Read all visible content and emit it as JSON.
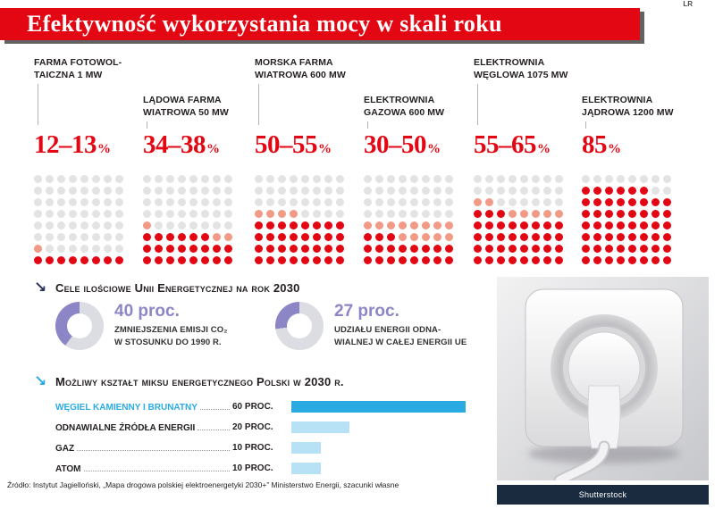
{
  "meta": {
    "credit": "LR",
    "source": "Źródło: Instytut Jagielloński, „Mapa drogowa polskiej elektroenergetyki 2030+” Ministerstwo Energii, szacunki własne",
    "photo_credit": "Shutterstock"
  },
  "header": {
    "title": "Efektywność wykorzystania mocy w skali roku"
  },
  "colors": {
    "red": "#e30613",
    "dot_gray": "#e3e3e3",
    "dot_orange": "#f19a86",
    "purple": "#8d86c6",
    "donut_rest": "#dcdce3",
    "blue": "#29abe2",
    "bar_light": "#b7e2f6",
    "navy": "#27335a"
  },
  "chart_data": [
    {
      "type": "heatmap",
      "subtype": "waffle-dot-matrix",
      "title": "Efektywność wykorzystania mocy w skali roku",
      "unit": "%",
      "grid": {
        "rows": 8,
        "cols": 8
      },
      "series": [
        {
          "label": "FARMA FOTOWOLTAICZNA 1 MW",
          "label_lines": [
            "FARMA FOTOWOL-",
            "TAICZNA 1 MW"
          ],
          "range_label": "12–13",
          "min": 12,
          "max": 13
        },
        {
          "label": "LĄDOWA FARMA WIATROWA 50 MW",
          "label_lines": [
            "LĄDOWA FARMA",
            "WIATROWA 50 MW"
          ],
          "range_label": "34–38",
          "min": 34,
          "max": 38
        },
        {
          "label": "MORSKA FARMA WIATROWA 600 MW",
          "label_lines": [
            "MORSKA FARMA",
            "WIATROWA 600 MW"
          ],
          "range_label": "50–55",
          "min": 50,
          "max": 55
        },
        {
          "label": "ELEKTROWNIA GAZOWA 600 MW",
          "label_lines": [
            "ELEKTROWNIA",
            "GAZOWA 600 MW"
          ],
          "range_label": "30–50",
          "min": 30,
          "max": 50
        },
        {
          "label": "ELEKTROWNIA WĘGLOWA 1075 MW",
          "label_lines": [
            "ELEKTROWNIA",
            "WĘGLOWA 1075 MW"
          ],
          "range_label": "55–65",
          "min": 55,
          "max": 65
        },
        {
          "label": "ELEKTROWNIA JĄDROWA 1200 MW",
          "label_lines": [
            "ELEKTROWNIA",
            "JĄDROWA 1200 MW"
          ],
          "range_label": "85",
          "min": 85,
          "max": 85
        }
      ]
    },
    {
      "type": "pie",
      "subtype": "donut",
      "title": "Cele ilościowe Unii Energetycznej na rok 2030",
      "items": [
        {
          "value": 40,
          "value_label": "40 proc.",
          "desc_lines": [
            "ZMNIEJSZENIA EMISJI CO₂",
            "W STOSUNKU DO 1990 R."
          ]
        },
        {
          "value": 27,
          "value_label": "27 proc.",
          "desc_lines": [
            "UDZIAŁU ENERGII ODNA-",
            "WIALNEJ W CAŁEJ ENERGII UE"
          ]
        }
      ]
    },
    {
      "type": "bar",
      "title": "Możliwy kształt miksu energetycznego Polski w 2030 r.",
      "categories": [
        "WĘGIEL KAMIENNY I BRUNATNY",
        "ODNAWIALNE ŹRÓDŁA ENERGII",
        "GAZ",
        "ATOM"
      ],
      "values": [
        60,
        20,
        10,
        10
      ],
      "value_labels": [
        "60 PROC.",
        "20 PROC.",
        "10 PROC.",
        "10 PROC."
      ],
      "xlim": [
        0,
        65
      ],
      "orientation": "horizontal"
    }
  ]
}
